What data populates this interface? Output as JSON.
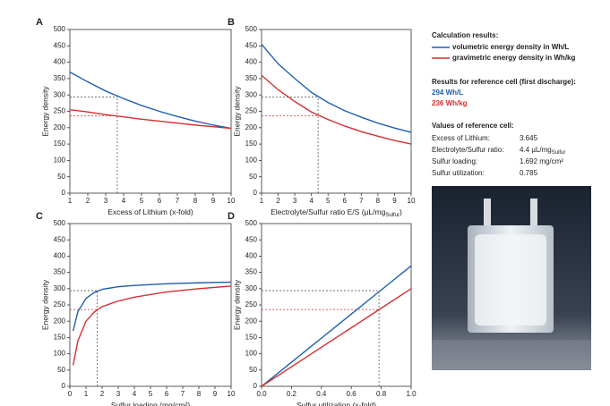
{
  "chart_data": [
    {
      "type": "line",
      "label": "A",
      "xlabel": "Excess of Lithium (x-fold)",
      "ylabel": "Energy density",
      "x": [
        1,
        2,
        3,
        4,
        5,
        6,
        7,
        8,
        9,
        10
      ],
      "series": [
        {
          "name": "volumetric energy density in Wh/L",
          "color": "#1f5fb0",
          "values": [
            370,
            340,
            312,
            289,
            268,
            250,
            234,
            220,
            208,
            198
          ]
        },
        {
          "name": "gravimetric energy density in Wh/kg",
          "color": "#d62f2f",
          "values": [
            255,
            248,
            240,
            233,
            226,
            220,
            214,
            208,
            203,
            198
          ]
        }
      ],
      "xlim": [
        1,
        10
      ],
      "xticks": [
        1,
        2,
        3,
        4,
        5,
        6,
        7,
        8,
        9,
        10
      ],
      "ylim": [
        0,
        500
      ],
      "yticks": [
        0,
        50,
        100,
        150,
        200,
        250,
        300,
        350,
        400,
        450,
        500
      ],
      "reference_x": 3.645,
      "reference_y": [
        294,
        236
      ]
    },
    {
      "type": "line",
      "label": "B",
      "xlabel": "Electrolyte/Sulfur ratio E/S (µL/mg",
      "xlabel_sub": "Sulfur",
      "xlabel_tail": ")",
      "ylabel": "Energy density",
      "x": [
        1,
        2,
        3,
        4,
        5,
        6,
        7,
        8,
        9,
        10
      ],
      "series": [
        {
          "color": "#1f5fb0",
          "values": [
            455,
            395,
            350,
            308,
            277,
            252,
            232,
            214,
            199,
            186
          ]
        },
        {
          "color": "#d62f2f",
          "values": [
            360,
            316,
            280,
            248,
            225,
            205,
            188,
            174,
            161,
            150
          ]
        }
      ],
      "xlim": [
        1,
        10
      ],
      "xticks": [
        1,
        2,
        3,
        4,
        5,
        6,
        7,
        8,
        9,
        10
      ],
      "ylim": [
        0,
        500
      ],
      "yticks": [
        0,
        50,
        100,
        150,
        200,
        250,
        300,
        350,
        400,
        450,
        500
      ],
      "reference_x": 4.4,
      "reference_y": [
        294,
        236
      ]
    },
    {
      "type": "line",
      "label": "C",
      "xlabel": "Sulfur loading (mg/cm²)",
      "ylabel": "Energy density",
      "x": [
        0.2,
        0.5,
        1,
        1.5,
        2,
        3,
        4,
        6,
        8,
        10
      ],
      "series": [
        {
          "color": "#1f5fb0",
          "values": [
            170,
            230,
            270,
            288,
            298,
            306,
            310,
            315,
            318,
            320
          ]
        },
        {
          "color": "#d62f2f",
          "values": [
            65,
            140,
            200,
            228,
            245,
            262,
            274,
            290,
            300,
            308
          ]
        }
      ],
      "xlim": [
        0,
        10
      ],
      "xticks": [
        0,
        1,
        2,
        3,
        4,
        5,
        6,
        7,
        8,
        9,
        10
      ],
      "ylim": [
        0,
        500
      ],
      "yticks": [
        0,
        50,
        100,
        150,
        200,
        250,
        300,
        350,
        400,
        450,
        500
      ],
      "reference_x": 1.692,
      "reference_y": [
        294,
        236
      ]
    },
    {
      "type": "line",
      "label": "D",
      "xlabel": "Sulfur utilization (x-fold)",
      "ylabel": "Energy density",
      "x": [
        0,
        0.2,
        0.4,
        0.6,
        0.8,
        1
      ],
      "series": [
        {
          "color": "#1f5fb0",
          "values": [
            0,
            74,
            148,
            222,
            296,
            370
          ]
        },
        {
          "color": "#d62f2f",
          "values": [
            0,
            60,
            120,
            180,
            240,
            300
          ]
        }
      ],
      "xlim": [
        0,
        1
      ],
      "xticks": [
        {
          "value": 0,
          "label": "0.0"
        },
        0.2,
        0.4,
        0.6,
        0.8,
        {
          "value": 1,
          "label": "1.0"
        }
      ],
      "ylim": [
        0,
        500
      ],
      "yticks": [
        0,
        50,
        100,
        150,
        200,
        250,
        300,
        350,
        400,
        450,
        500
      ],
      "reference_x": 0.785,
      "reference_y": [
        294,
        236
      ]
    }
  ],
  "side_panel": {
    "heading": "Calculation results:",
    "results_heading": "Results for reference cell (first discharge):",
    "result_volumetric": "294 Wh/L",
    "result_gravimetric": "236 Wh/kg",
    "values_heading": "Values of reference cell:",
    "rows": [
      [
        "Excess of Lithium:",
        "3.645"
      ],
      [
        "Electrolyte/Sulfur ratio:",
        "4.4 µL/mg",
        "Sulfur"
      ],
      [
        "Sulfur loading:",
        "1.692 mg/cm²"
      ],
      [
        "Sulfur utilization:",
        "0.785"
      ]
    ]
  }
}
